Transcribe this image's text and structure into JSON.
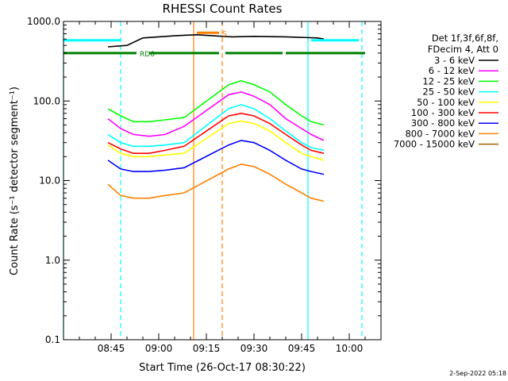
{
  "chart_data": {
    "type": "line",
    "title": "RHESSI Count Rates",
    "xlabel": "Start Time (26-Oct-17 08:30:22)",
    "ylabel": "Count Rate (s⁻¹ detector segment⁻¹)",
    "y_scale": "log",
    "ylim": [
      0.1,
      1000
    ],
    "xlim": [
      "08:30",
      "10:10"
    ],
    "x_ticks": [
      "08:45",
      "09:00",
      "09:15",
      "09:30",
      "09:45",
      "10:00"
    ],
    "y_ticks": [
      "0.1",
      "1.0",
      "10.0",
      "100.0",
      "1000.0"
    ],
    "legend_header": [
      "Det 1f,3f,6f,8f,",
      "FDecim 4, Att 0"
    ],
    "legend_position": "right",
    "series": [
      {
        "name": "3 - 6 keV",
        "color": "#000000",
        "x": [
          "08:44",
          "08:50",
          "08:55",
          "09:00",
          "09:05",
          "09:08",
          "09:12",
          "09:23",
          "09:30",
          "09:40",
          "09:50",
          "09:52"
        ],
        "values": [
          480,
          500,
          620,
          640,
          660,
          670,
          680,
          640,
          650,
          640,
          620,
          600
        ]
      },
      {
        "name": "6 - 12 keV",
        "color": "#ff00ff",
        "x": [
          "08:44",
          "08:48",
          "08:52",
          "08:57",
          "09:02",
          "09:08",
          "09:22",
          "09:26",
          "09:30",
          "09:35",
          "09:40",
          "09:45",
          "09:48",
          "09:52"
        ],
        "values": [
          60,
          45,
          38,
          36,
          38,
          48,
          120,
          130,
          115,
          90,
          60,
          45,
          38,
          32
        ]
      },
      {
        "name": "12 - 25 keV",
        "color": "#00ff00",
        "x": [
          "08:44",
          "08:48",
          "08:52",
          "08:57",
          "09:02",
          "09:08",
          "09:22",
          "09:26",
          "09:30",
          "09:35",
          "09:40",
          "09:45",
          "09:48",
          "09:52"
        ],
        "values": [
          80,
          65,
          55,
          55,
          58,
          62,
          160,
          180,
          160,
          130,
          90,
          65,
          55,
          50
        ]
      },
      {
        "name": "25 - 50 keV",
        "color": "#00ffff",
        "x": [
          "08:44",
          "08:48",
          "08:52",
          "08:57",
          "09:02",
          "09:08",
          "09:22",
          "09:26",
          "09:30",
          "09:35",
          "09:40",
          "09:45",
          "09:48",
          "09:52"
        ],
        "values": [
          38,
          30,
          27,
          27,
          28,
          30,
          80,
          90,
          80,
          60,
          42,
          30,
          26,
          24
        ]
      },
      {
        "name": "50 - 100 keV",
        "color": "#ffff00",
        "x": [
          "08:44",
          "08:48",
          "08:52",
          "08:57",
          "09:02",
          "09:08",
          "09:22",
          "09:26",
          "09:30",
          "09:35",
          "09:40",
          "09:45",
          "09:48",
          "09:52"
        ],
        "values": [
          28,
          22,
          20,
          20,
          21,
          22,
          52,
          56,
          52,
          42,
          30,
          22,
          20,
          18
        ]
      },
      {
        "name": "100 - 300 keV",
        "color": "#ff0000",
        "x": [
          "08:44",
          "08:48",
          "08:52",
          "08:57",
          "09:02",
          "09:08",
          "09:22",
          "09:26",
          "09:30",
          "09:35",
          "09:40",
          "09:45",
          "09:48",
          "09:52"
        ],
        "values": [
          30,
          25,
          22,
          22,
          24,
          27,
          65,
          70,
          65,
          52,
          38,
          28,
          24,
          22
        ]
      },
      {
        "name": "300 - 800 keV",
        "color": "#0000ff",
        "x": [
          "08:44",
          "08:48",
          "08:52",
          "08:57",
          "09:02",
          "09:08",
          "09:22",
          "09:26",
          "09:30",
          "09:35",
          "09:40",
          "09:45",
          "09:48",
          "09:52"
        ],
        "values": [
          18,
          14,
          13,
          13,
          13.5,
          14.5,
          28,
          32,
          30,
          24,
          18,
          14,
          13,
          12
        ]
      },
      {
        "name": "800 - 7000 keV",
        "color": "#ff8000",
        "x": [
          "08:44",
          "08:48",
          "08:52",
          "08:57",
          "09:02",
          "09:08",
          "09:22",
          "09:26",
          "09:30",
          "09:35",
          "09:40",
          "09:45",
          "09:48",
          "09:52"
        ],
        "values": [
          9,
          6.5,
          6,
          6,
          6.5,
          7,
          14,
          16,
          15,
          12,
          9,
          7,
          6,
          5.5
        ]
      },
      {
        "name": "7000 - 15000 keV",
        "color": "#a06000",
        "x": [],
        "values": []
      }
    ],
    "flag_bars": [
      {
        "label": "",
        "color": "#00ffff",
        "y": 580,
        "segments": [
          [
            "08:30",
            "08:48"
          ],
          [
            "09:48",
            "10:03"
          ]
        ]
      },
      {
        "label": "RD6",
        "color": "#008000",
        "y": 400,
        "segments": [
          [
            "08:30",
            "08:53"
          ],
          [
            "08:57",
            "09:19"
          ],
          [
            "09:21",
            "09:39"
          ],
          [
            "09:40",
            "10:03"
          ],
          [
            "10:03",
            "10:05"
          ]
        ]
      },
      {
        "label": "S",
        "color": "#ff8000",
        "y": 720,
        "segments": [
          [
            "09:12",
            "09:19"
          ]
        ]
      }
    ],
    "vertical_markers": [
      {
        "x": "08:30",
        "color": "#00ffff",
        "style": "solid"
      },
      {
        "x": "08:48",
        "color": "#00ffff",
        "style": "dashed"
      },
      {
        "x": "09:11",
        "color": "#ff8000",
        "style": "solid"
      },
      {
        "x": "09:20",
        "color": "#ff8000",
        "style": "dashed"
      },
      {
        "x": "09:47",
        "color": "#00ffff",
        "style": "solid"
      },
      {
        "x": "10:04",
        "color": "#00ffff",
        "style": "dashed"
      }
    ]
  },
  "footer": {
    "timestamp": "2-Sep-2022 05:18"
  }
}
